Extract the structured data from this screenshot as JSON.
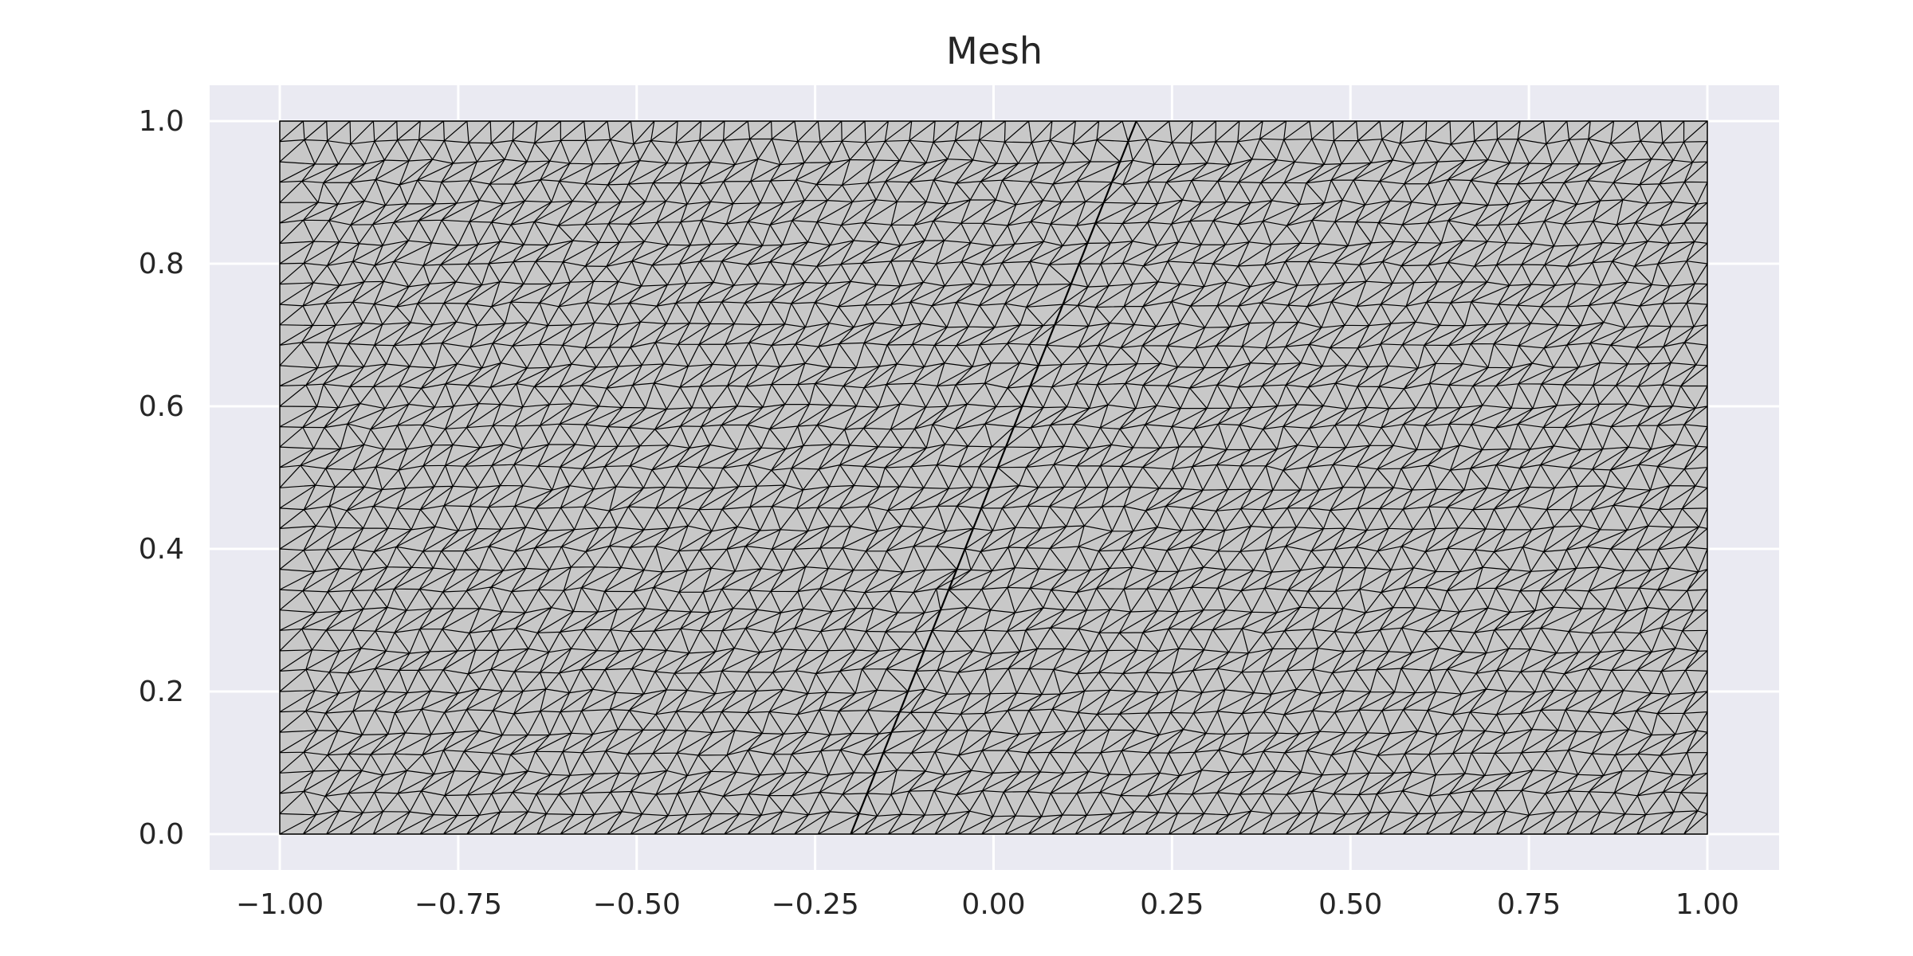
{
  "chart_data": {
    "type": "mesh",
    "title": "Mesh",
    "xlabel": "",
    "ylabel": "",
    "xlim": [
      -1.1,
      1.1
    ],
    "ylim": [
      -0.05,
      1.05
    ],
    "domain": {
      "x": [
        -1.0,
        1.0
      ],
      "y": [
        0.0,
        1.0
      ]
    },
    "x_ticks": [
      -1.0,
      -0.75,
      -0.5,
      -0.25,
      0.0,
      0.25,
      0.5,
      0.75,
      1.0
    ],
    "x_tick_labels": [
      "−1.00",
      "−0.75",
      "−0.50",
      "−0.25",
      "0.00",
      "0.25",
      "0.50",
      "0.75",
      "1.00"
    ],
    "y_ticks": [
      0.0,
      0.2,
      0.4,
      0.6,
      0.8,
      1.0
    ],
    "y_tick_labels": [
      "0.0",
      "0.2",
      "0.4",
      "0.6",
      "0.8",
      "1.0"
    ],
    "grid": true,
    "interface_line": {
      "from": [
        -0.2,
        0.0
      ],
      "to": [
        0.2,
        1.0
      ]
    },
    "approx_element_size": 0.033,
    "colors": {
      "background": "#ffffff",
      "axes_face": "#eaeaf2",
      "grid": "#ffffff",
      "mesh_fill": "#c8c8c8",
      "mesh_edge": "#000000",
      "text": "#262626"
    }
  }
}
